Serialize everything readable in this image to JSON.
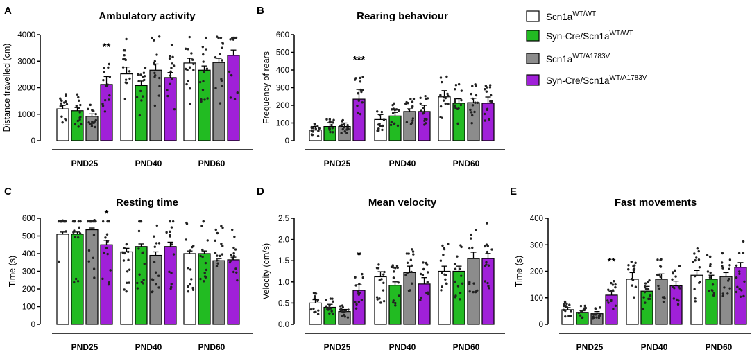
{
  "legend": {
    "entries": [
      {
        "base": "Scn1a",
        "sup": "WT/WT",
        "color": "#ffffff"
      },
      {
        "base": "Syn-Cre/Scn1a",
        "sup": "WT/WT",
        "color": "#22bb22"
      },
      {
        "base": "Scn1a",
        "sup": "WT/A1783V",
        "color": "#8c8c8c"
      },
      {
        "base": "Syn-Cre/Scn1a",
        "sup": "WT/A1783V",
        "color": "#a020d8"
      }
    ]
  },
  "chart_data": [
    {
      "panel": "A",
      "type": "bar",
      "title": "Ambulatory activity",
      "ylabel": "Distance travelled (cm)",
      "ylim": [
        0,
        4000
      ],
      "yticks": [
        0,
        1000,
        2000,
        3000,
        4000
      ],
      "ytick_labels": [
        "0",
        "1000",
        "2000",
        "3000",
        "4000"
      ],
      "categories": [
        "PND25",
        "PND40",
        "PND60"
      ],
      "series": [
        {
          "name": "Scn1a WT/WT",
          "values": [
            1200,
            2520,
            2930
          ],
          "errors": [
            130,
            260,
            180
          ]
        },
        {
          "name": "Syn-Cre/Scn1a WT/WT",
          "values": [
            1130,
            2080,
            2660
          ],
          "errors": [
            120,
            170,
            160
          ]
        },
        {
          "name": "Scn1a WT/A1783V",
          "values": [
            920,
            2660,
            2950
          ],
          "errors": [
            90,
            230,
            160
          ]
        },
        {
          "name": "Syn-Cre/Scn1a WT/A1783V",
          "values": [
            2120,
            2380,
            3220
          ],
          "errors": [
            300,
            190,
            200
          ]
        }
      ],
      "annotations": [
        {
          "text": "**",
          "category": 0,
          "series": 3
        }
      ]
    },
    {
      "panel": "B",
      "type": "bar",
      "title": "Rearing behaviour",
      "ylabel": "Frequency of rears",
      "ylim": [
        0,
        600
      ],
      "yticks": [
        0,
        100,
        200,
        300,
        400,
        500,
        600
      ],
      "ytick_labels": [
        "0",
        "100",
        "200",
        "300",
        "400",
        "500",
        "600"
      ],
      "categories": [
        "PND25",
        "PND40",
        "PND60"
      ],
      "series": [
        {
          "name": "Scn1a WT/WT",
          "values": [
            60,
            120,
            248
          ],
          "errors": [
            20,
            28,
            35
          ]
        },
        {
          "name": "Syn-Cre/Scn1a WT/WT",
          "values": [
            80,
            140,
            212
          ],
          "errors": [
            22,
            20,
            25
          ]
        },
        {
          "name": "Scn1a WT/A1783V",
          "values": [
            80,
            165,
            215
          ],
          "errors": [
            20,
            15,
            25
          ]
        },
        {
          "name": "Syn-Cre/Scn1a WT/A1783V",
          "values": [
            235,
            165,
            212
          ],
          "errors": [
            55,
            35,
            35
          ]
        }
      ],
      "annotations": [
        {
          "text": "***",
          "category": 0,
          "series": 3
        }
      ]
    },
    {
      "panel": "C",
      "type": "bar",
      "title": "Resting time",
      "ylabel": "Time (s)",
      "ylim": [
        0,
        600
      ],
      "yticks": [
        0,
        100,
        200,
        300,
        400,
        500,
        600
      ],
      "ytick_labels": [
        "0",
        "100",
        "200",
        "300",
        "400",
        "500",
        "600"
      ],
      "categories": [
        "PND25",
        "PND40",
        "PND60"
      ],
      "series": [
        {
          "name": "Scn1a WT/WT",
          "values": [
            510,
            410,
            400
          ],
          "errors": [
            12,
            20,
            15
          ]
        },
        {
          "name": "Syn-Cre/Scn1a WT/WT",
          "values": [
            510,
            440,
            400
          ],
          "errors": [
            12,
            15,
            15
          ]
        },
        {
          "name": "Scn1a WT/A1783V",
          "values": [
            535,
            390,
            360
          ],
          "errors": [
            10,
            20,
            12
          ]
        },
        {
          "name": "Syn-Cre/Scn1a WT/A1783V",
          "values": [
            450,
            440,
            365
          ],
          "errors": [
            25,
            25,
            15
          ]
        }
      ],
      "annotations": [
        {
          "text": "*",
          "category": 0,
          "series": 3
        }
      ]
    },
    {
      "panel": "D",
      "type": "bar",
      "title": "Mean velocity",
      "ylabel": "Velocity (cm/s)",
      "ylim": [
        0,
        2.5
      ],
      "yticks": [
        0,
        0.5,
        1,
        1.5,
        2,
        2.5
      ],
      "ytick_labels": [
        "0.0",
        "0.5",
        "1.0",
        "1.5",
        "2.0",
        "2.5"
      ],
      "categories": [
        "PND25",
        "PND40",
        "PND60"
      ],
      "series": [
        {
          "name": "Scn1a WT/WT",
          "values": [
            0.5,
            1.12,
            1.25
          ],
          "errors": [
            0.08,
            0.12,
            0.12
          ]
        },
        {
          "name": "Syn-Cre/Scn1a WT/WT",
          "values": [
            0.4,
            0.92,
            1.25
          ],
          "errors": [
            0.07,
            0.08,
            0.12
          ]
        },
        {
          "name": "Scn1a WT/A1783V",
          "values": [
            0.3,
            1.22,
            1.55
          ],
          "errors": [
            0.05,
            0.15,
            0.15
          ]
        },
        {
          "name": "Syn-Cre/Scn1a WT/A1783V",
          "values": [
            0.8,
            0.95,
            1.55
          ],
          "errors": [
            0.13,
            0.15,
            0.12
          ]
        }
      ],
      "annotations": [
        {
          "text": "*",
          "category": 0,
          "series": 3
        }
      ]
    },
    {
      "panel": "E",
      "type": "bar",
      "title": "Fast movements",
      "ylabel": "Time (s)",
      "ylim": [
        0,
        400
      ],
      "yticks": [
        0,
        100,
        200,
        300,
        400
      ],
      "ytick_labels": [
        "0",
        "100",
        "200",
        "300",
        "400"
      ],
      "categories": [
        "PND25",
        "PND40",
        "PND60"
      ],
      "series": [
        {
          "name": "Scn1a WT/WT",
          "values": [
            55,
            170,
            185
          ],
          "errors": [
            8,
            25,
            18
          ]
        },
        {
          "name": "Syn-Cre/Scn1a WT/WT",
          "values": [
            45,
            125,
            170
          ],
          "errors": [
            6,
            18,
            15
          ]
        },
        {
          "name": "Scn1a WT/A1783V",
          "values": [
            40,
            170,
            180
          ],
          "errors": [
            8,
            20,
            15
          ]
        },
        {
          "name": "Syn-Cre/Scn1a WT/A1783V",
          "values": [
            110,
            145,
            215
          ],
          "errors": [
            15,
            18,
            18
          ]
        }
      ],
      "annotations": [
        {
          "text": "**",
          "category": 0,
          "series": 3
        }
      ]
    }
  ]
}
